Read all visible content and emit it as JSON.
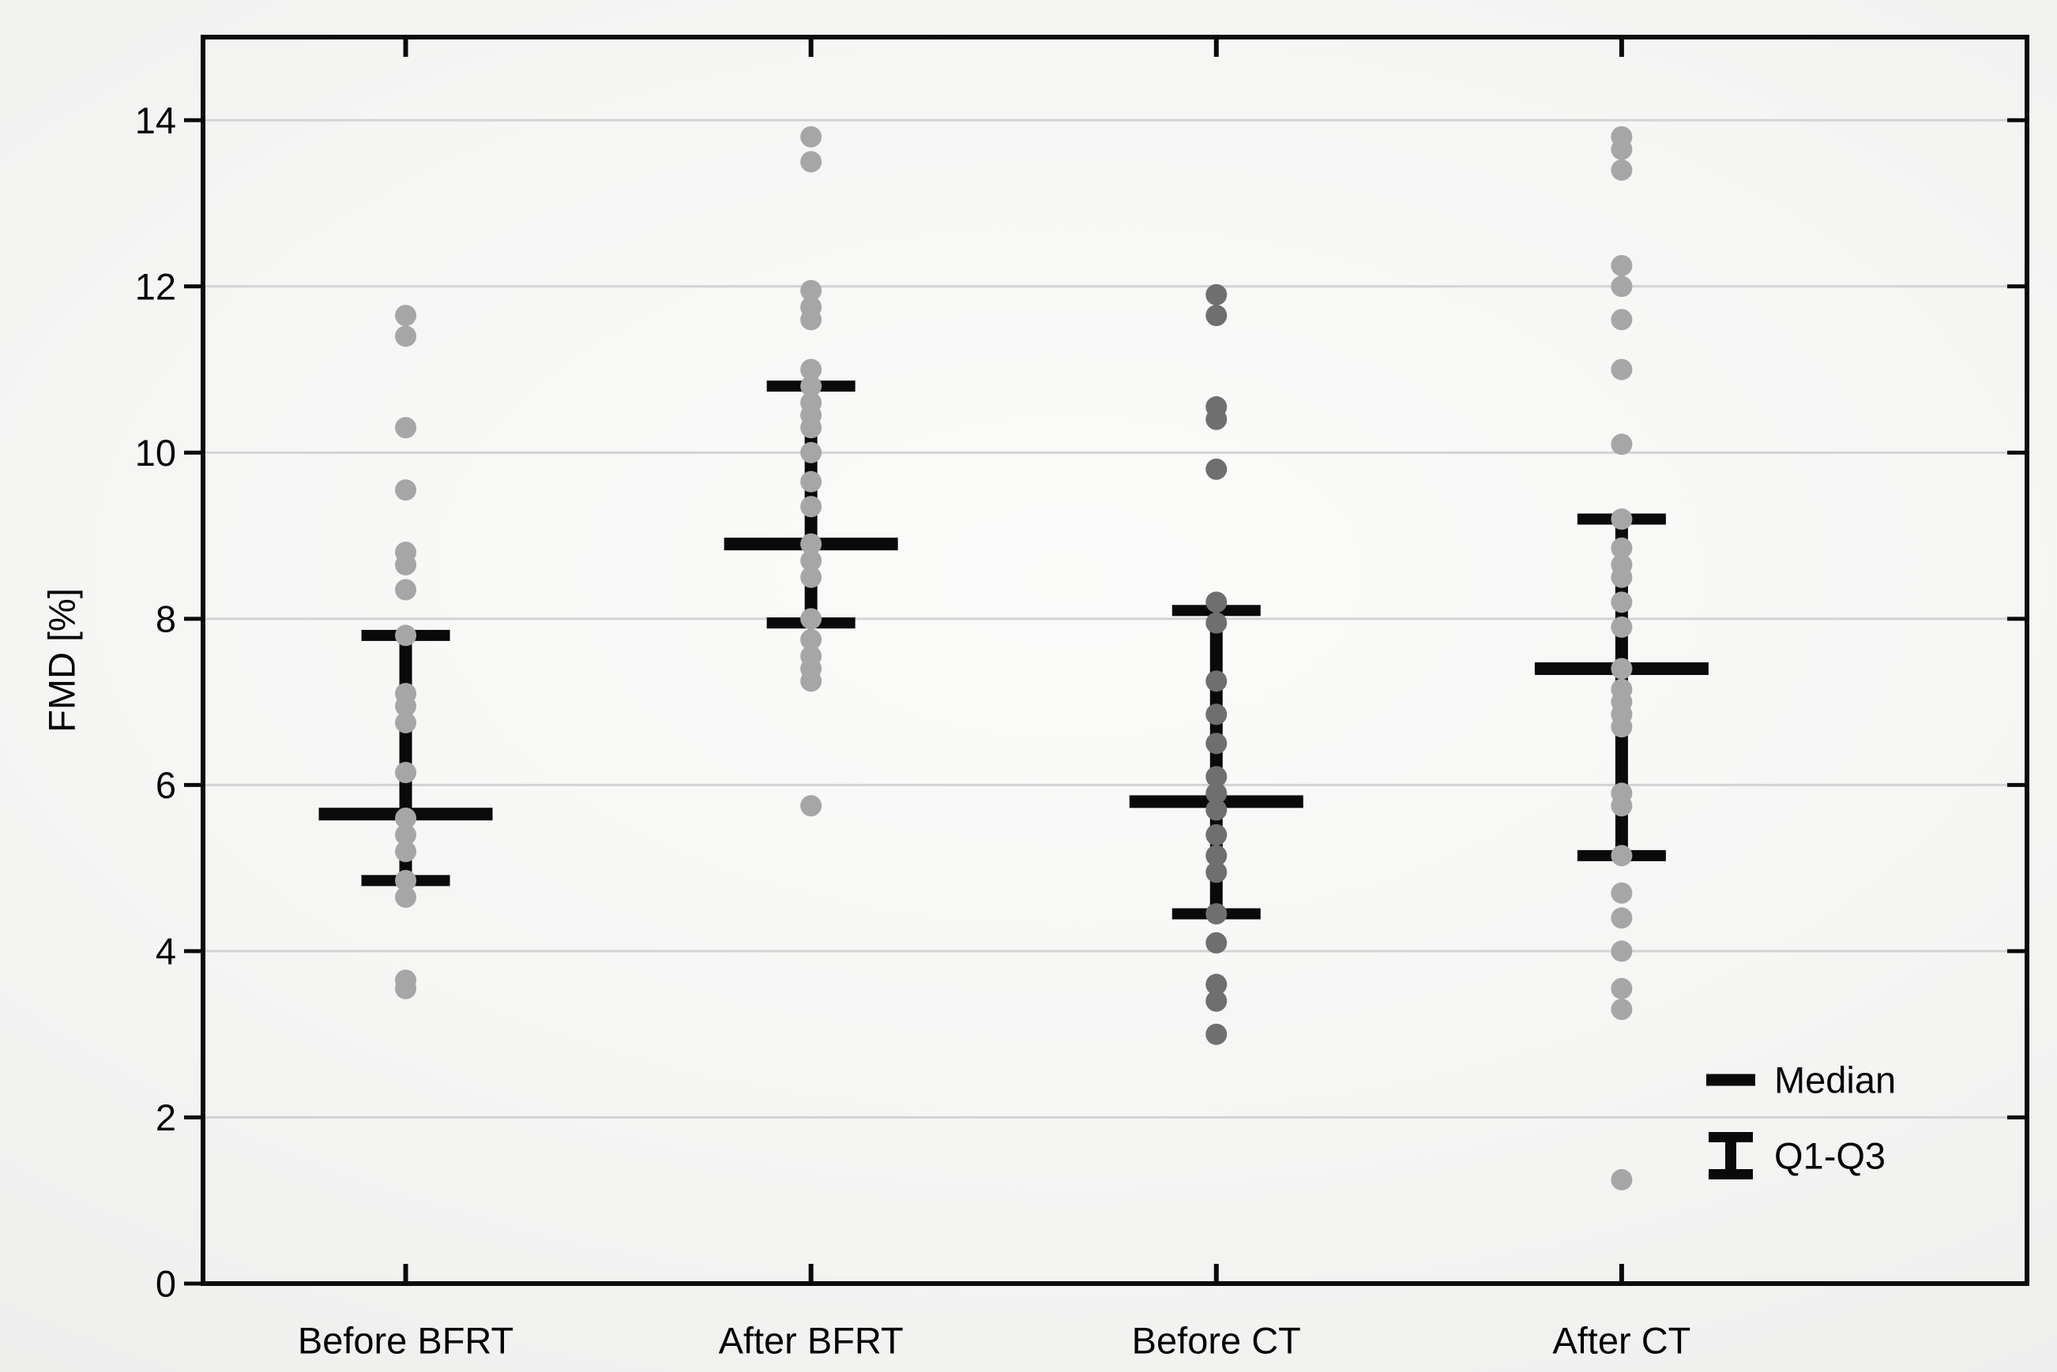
{
  "figure": {
    "description": "Dot plot of FMD [%] per subject with median and interquartile (Q1-Q3) bars for four conditions"
  },
  "chart_data": {
    "type": "scatter",
    "title": "",
    "xlabel": "",
    "ylabel": "FMD [%]",
    "ylim": [
      0,
      15
    ],
    "yticks": [
      0,
      2,
      4,
      6,
      8,
      10,
      12,
      14
    ],
    "grid": true,
    "categories": [
      "Before BFRT",
      "After BFRT",
      "Before CT",
      "After CT"
    ],
    "series": [
      {
        "label": "Before BFRT",
        "dot_color": "#a6a6a6",
        "median": 5.65,
        "q1": 4.85,
        "q3": 7.8,
        "dots": [
          11.65,
          11.4,
          10.3,
          9.55,
          8.8,
          8.65,
          8.35,
          7.8,
          7.1,
          6.95,
          6.75,
          6.15,
          5.6,
          5.4,
          5.2,
          4.85,
          4.65,
          3.65,
          3.55
        ]
      },
      {
        "label": "After BFRT",
        "dot_color": "#a6a6a6",
        "median": 8.9,
        "q1": 7.95,
        "q3": 10.8,
        "dots": [
          13.8,
          13.5,
          11.95,
          11.75,
          11.6,
          11.0,
          10.8,
          10.6,
          10.45,
          10.3,
          10.0,
          9.65,
          9.35,
          8.9,
          8.7,
          8.5,
          8.0,
          7.75,
          7.55,
          7.4,
          7.25,
          5.75
        ]
      },
      {
        "label": "Before CT",
        "dot_color": "#6f6f6f",
        "median": 5.8,
        "q1": 4.45,
        "q3": 8.1,
        "dots": [
          11.9,
          11.65,
          10.55,
          10.4,
          9.8,
          8.2,
          7.95,
          7.25,
          6.85,
          6.5,
          6.1,
          5.9,
          5.7,
          5.4,
          5.15,
          4.95,
          4.45,
          4.1,
          3.6,
          3.4,
          3.0
        ]
      },
      {
        "label": "After CT",
        "dot_color": "#a6a6a6",
        "median": 7.4,
        "q1": 5.15,
        "q3": 9.2,
        "dots": [
          13.8,
          13.65,
          13.4,
          12.25,
          12.0,
          11.6,
          11.0,
          10.1,
          9.2,
          8.85,
          8.65,
          8.5,
          8.2,
          7.9,
          7.4,
          7.15,
          7.0,
          6.85,
          6.7,
          5.9,
          5.75,
          5.15,
          4.7,
          4.4,
          4.0,
          3.55,
          3.3,
          1.25
        ]
      }
    ],
    "legend": {
      "position": "bottom-right",
      "items": [
        {
          "symbol": "median-dash",
          "label": "Median"
        },
        {
          "symbol": "q1q3-ibeam",
          "label": "Q1-Q3"
        }
      ]
    },
    "colors": {
      "bar": "#0a0a0a",
      "frame": "#0b0b0b",
      "gridline": "#d3d3d3",
      "text": "#060606",
      "dot_light": "#a6a6a6",
      "dot_dark": "#6f6f6f"
    }
  }
}
